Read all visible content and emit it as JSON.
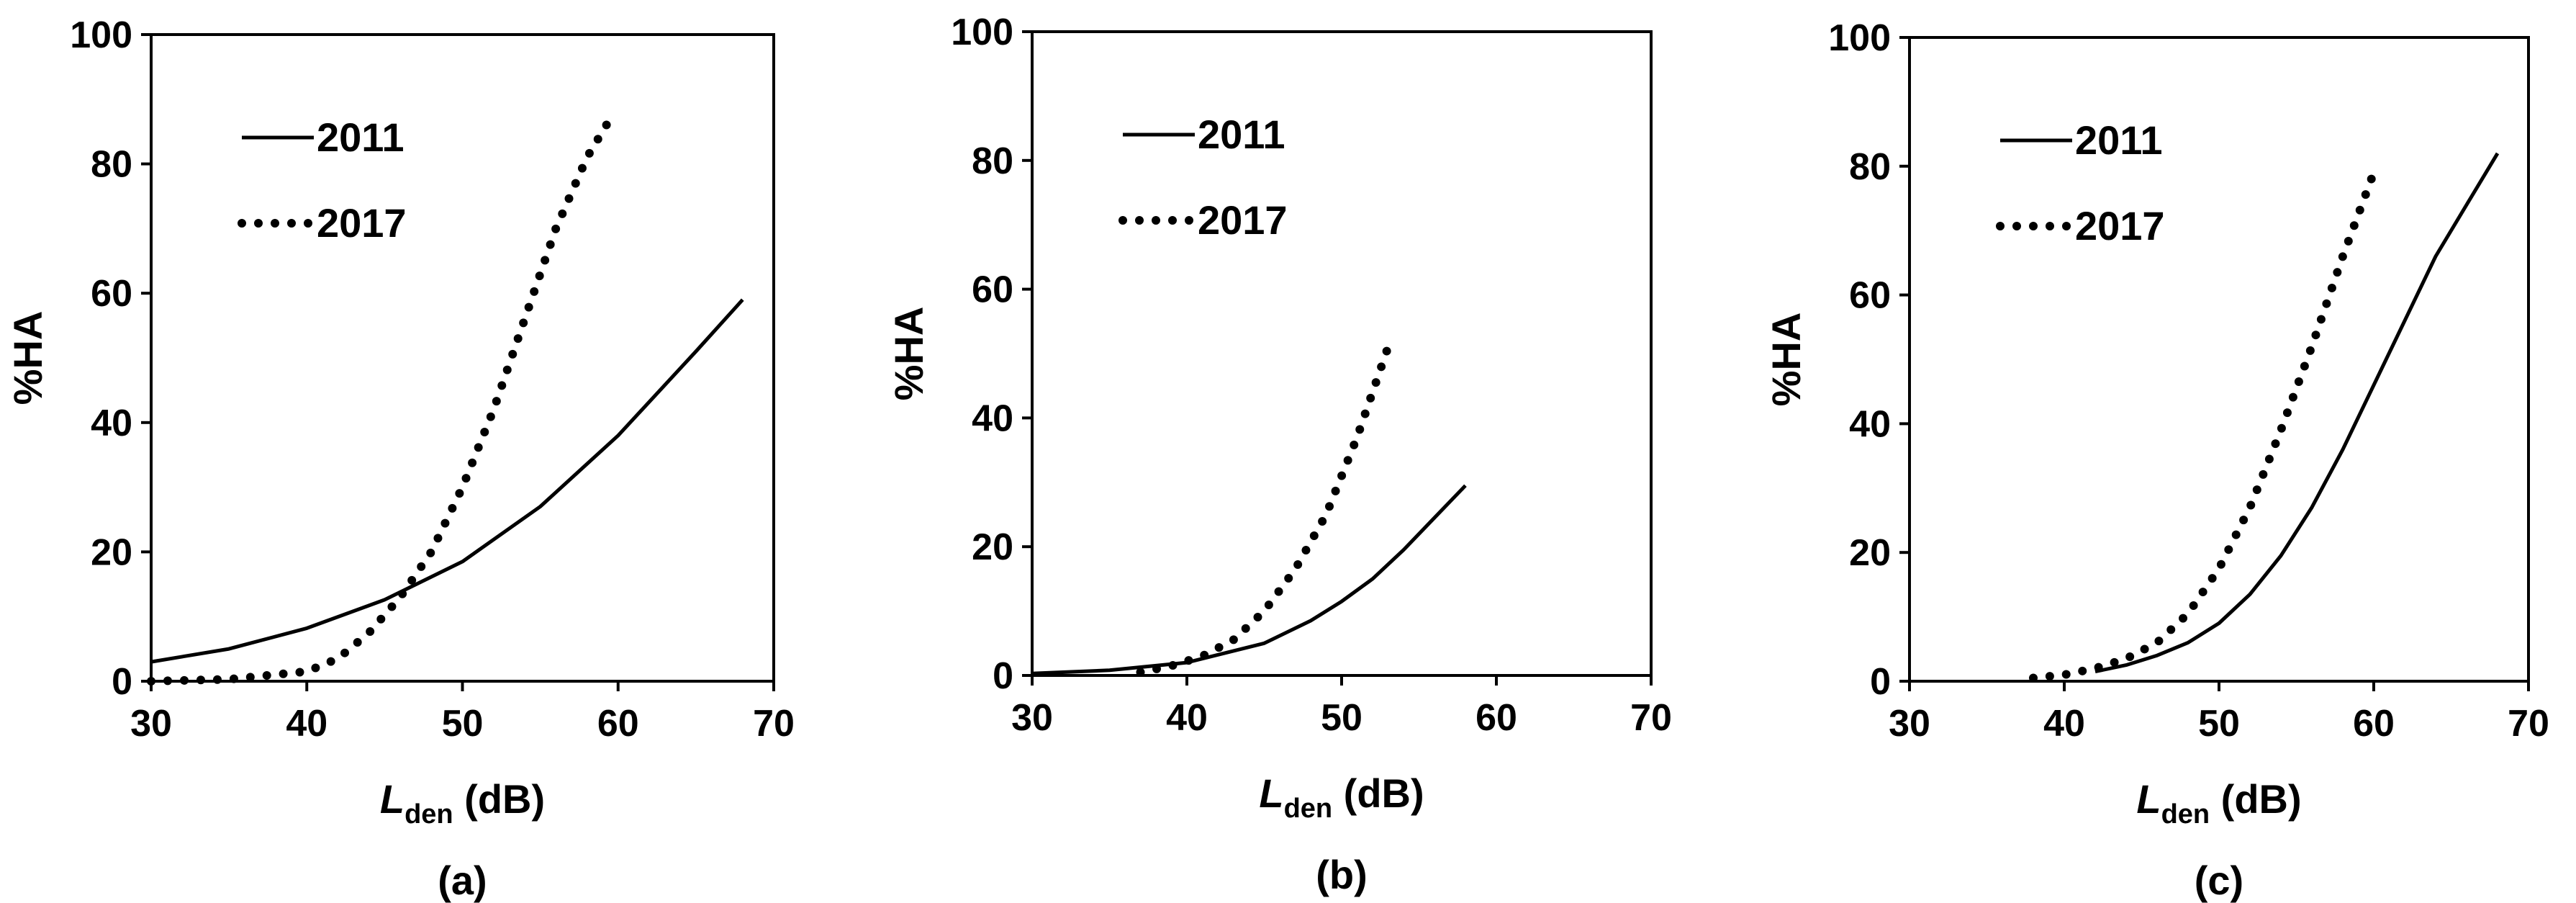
{
  "chart_data": [
    {
      "type": "line",
      "panel_label": "(a)",
      "xlabel": "L",
      "xlabel_sub": "den",
      "xlabel_unit": " (dB)",
      "ylabel": "%HA",
      "xlim": [
        30,
        70
      ],
      "ylim": [
        0,
        100
      ],
      "xticks": [
        30,
        40,
        50,
        60,
        70
      ],
      "yticks": [
        0,
        20,
        40,
        60,
        80,
        100
      ],
      "legend_position": "top-left",
      "grid": false,
      "series": [
        {
          "name": "2011",
          "style": "solid",
          "x": [
            30,
            35,
            40,
            45,
            50,
            55,
            60,
            65,
            68
          ],
          "y": [
            3.0,
            5.0,
            8.2,
            12.6,
            18.5,
            27.0,
            38.0,
            51.0,
            59.0
          ]
        },
        {
          "name": "2017",
          "style": "dotted",
          "x": [
            30,
            35,
            40,
            42,
            44,
            46,
            48,
            50,
            52,
            54,
            56,
            58,
            59.5
          ],
          "y": [
            0,
            0.3,
            1.5,
            3.5,
            7.5,
            13.0,
            20.0,
            30.0,
            42.0,
            56.0,
            70.0,
            81.0,
            87.0
          ]
        }
      ]
    },
    {
      "type": "line",
      "panel_label": "(b)",
      "xlabel": "L",
      "xlabel_sub": "den",
      "xlabel_unit": " (dB)",
      "ylabel": "%HA",
      "xlim": [
        30,
        70
      ],
      "ylim": [
        0,
        100
      ],
      "xticks": [
        30,
        40,
        50,
        60,
        70
      ],
      "yticks": [
        0,
        20,
        40,
        60,
        80,
        100
      ],
      "legend_position": "top-left",
      "grid": false,
      "series": [
        {
          "name": "2011",
          "style": "solid",
          "x": [
            30,
            35,
            40,
            45,
            48,
            50,
            52,
            54,
            56,
            58
          ],
          "y": [
            0.3,
            0.8,
            2.0,
            5.0,
            8.5,
            11.5,
            15.0,
            19.5,
            24.5,
            29.5
          ]
        },
        {
          "name": "2017",
          "style": "dotted",
          "x": [
            37,
            39,
            41,
            43,
            45,
            47,
            49,
            51,
            53
          ],
          "y": [
            0.5,
            1.5,
            3.0,
            5.5,
            10.0,
            16.5,
            25.0,
            37.0,
            51.0
          ]
        }
      ]
    },
    {
      "type": "line",
      "panel_label": "(c)",
      "xlabel": "L",
      "xlabel_sub": "den",
      "xlabel_unit": " (dB)",
      "ylabel": "%HA",
      "xlim": [
        30,
        70
      ],
      "ylim": [
        0,
        100
      ],
      "xticks": [
        30,
        40,
        50,
        60,
        70
      ],
      "yticks": [
        0,
        20,
        40,
        60,
        80,
        100
      ],
      "legend_position": "top-left",
      "grid": false,
      "series": [
        {
          "name": "2011",
          "style": "solid",
          "x": [
            42,
            44,
            46,
            48,
            50,
            52,
            54,
            56,
            58,
            60,
            62,
            64,
            66,
            68
          ],
          "y": [
            1.5,
            2.5,
            4.0,
            6.0,
            9.0,
            13.5,
            19.5,
            27.0,
            36.0,
            46.0,
            56.0,
            66.0,
            74.0,
            82.0
          ]
        },
        {
          "name": "2017",
          "style": "dotted",
          "x": [
            38,
            40,
            42,
            44,
            46,
            48,
            50,
            52,
            54,
            56,
            58,
            60
          ],
          "y": [
            0.5,
            1.0,
            2.0,
            3.5,
            6.0,
            10.5,
            17.5,
            27.0,
            39.0,
            52.0,
            66.0,
            79.0
          ]
        }
      ]
    }
  ]
}
